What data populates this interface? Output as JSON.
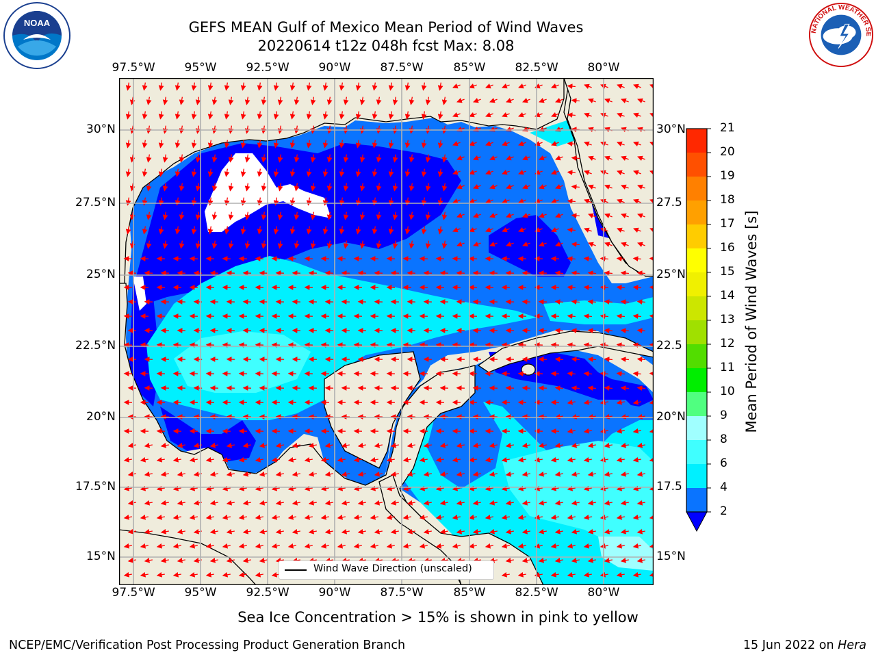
{
  "title_line1": "GEFS MEAN Gulf of Mexico Mean Period of Wind Waves",
  "title_line2": "20220614 t12z 048h fcst   Max: 8.08",
  "logos": {
    "left": "noaa-logo",
    "left_text": "NOAA",
    "right": "nws-logo",
    "right_text": "NATIONAL WEATHER SERVICE"
  },
  "lon_ticks": [
    "97.5°W",
    "95°W",
    "92.5°W",
    "90°W",
    "87.5°W",
    "85°W",
    "82.5°W",
    "80°W"
  ],
  "lat_ticks": [
    "30°N",
    "27.5°N",
    "25°N",
    "22.5°N",
    "20°N",
    "17.5°N",
    "15°N"
  ],
  "lat_ticks_right": [
    "30°N",
    "27.5",
    "25°N",
    "22.5",
    "20°N",
    "17.5",
    "15°N"
  ],
  "legend": {
    "label": "Wind Wave Direction (unscaled)"
  },
  "colorbar": {
    "title": "Mean Period of Wind Waves [s]",
    "levels": [
      "2",
      "4",
      "6",
      "8",
      "9",
      "10",
      "11",
      "12",
      "13",
      "14",
      "15",
      "16",
      "17",
      "18",
      "19",
      "20",
      "21"
    ],
    "colors": [
      "#0a74ff",
      "#00f0ff",
      "#40ffff",
      "#a0ffff",
      "#50ff80",
      "#00ee00",
      "#52dd00",
      "#a0e000",
      "#cce600",
      "#f0f000",
      "#ffff00",
      "#ffcc00",
      "#ffa000",
      "#ff8000",
      "#ff5000",
      "#ff2800",
      "#ff0000"
    ],
    "extend_color": "#0000ff"
  },
  "colors": {
    "land": "#efecdc",
    "arrow": "#ff0000",
    "grid": "#b0b0b0"
  },
  "caption": "Sea Ice Concentration > 15% is shown in pink to yellow",
  "footer_left": "NCEP/EMC/Verification Post Processing Product Generation Branch",
  "footer_date": "15 Jun 2022 on",
  "footer_host": "Hera"
}
